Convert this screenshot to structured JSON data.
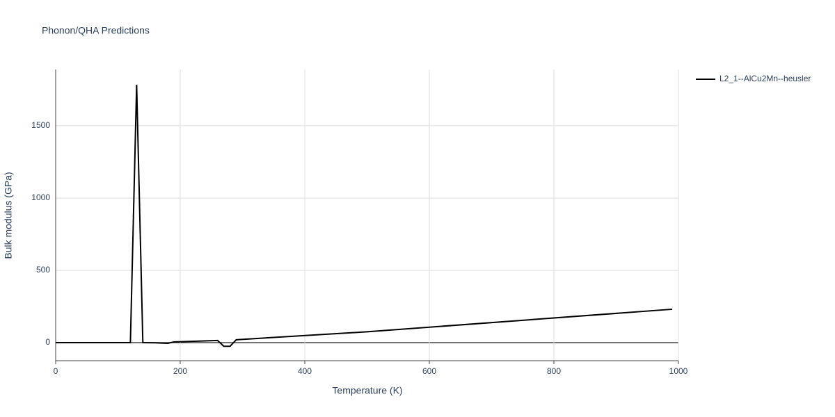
{
  "chart_data": {
    "type": "line",
    "title": "Phonon/QHA Predictions",
    "x_label": "Temperature (K)",
    "y_label": "Bulk modulus (GPa)",
    "x": [
      0,
      120,
      130,
      140,
      160,
      180,
      190,
      260,
      270,
      280,
      290,
      500,
      990
    ],
    "series": [
      {
        "name": "L2_1--AlCu2Mn--heusler",
        "color": "#000000",
        "values": [
          0,
          0,
          1784,
          0,
          -1,
          -5,
          5,
          15,
          -25,
          -25,
          20,
          75,
          231
        ]
      }
    ],
    "xlim": [
      0,
      1000
    ],
    "xticks": [
      0,
      200,
      400,
      600,
      800,
      1000
    ],
    "ylim": [
      -125,
      1889
    ],
    "yticks": [
      0,
      500,
      1000,
      1500
    ],
    "grid": true,
    "legend": "top-right"
  }
}
